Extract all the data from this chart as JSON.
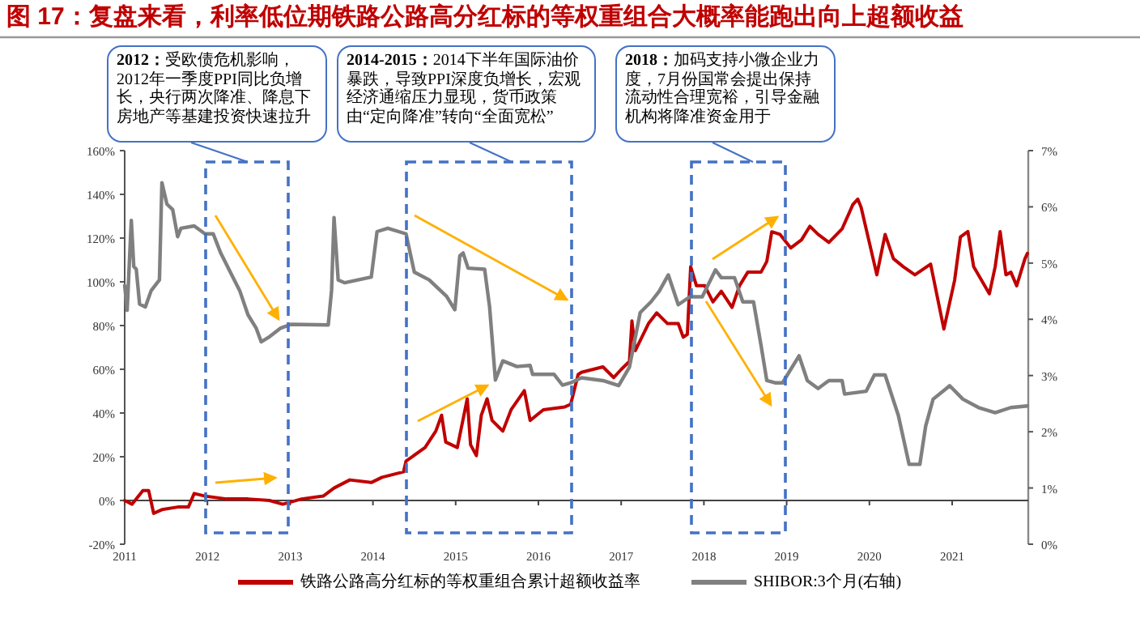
{
  "chart_data": {
    "type": "line",
    "title": "图 17：复盘来看，利率低位期铁路公路高分红标的等权重组合大概率能跑出向上超额收益",
    "annotations": [
      "**2012：**受欧债危机影响，2012年一季度PPI同比负增长，央行两次降准、降息下房地产等基建投资快速拉升",
      "**2014-2015：**2014下半年国际油价暴跌，导致PPI深度负增长，宏观经济通缩压力显现，货币政策由“定向降准”转向“全面宽松”",
      "**2018：**加码支持小微企业力度，7月份国常会提出保持流动性合理宽裕，引导金融机构将降准资金用于"
    ],
    "xlim": [
      2011,
      2021.92
    ],
    "xticks": [
      2011,
      2012,
      2013,
      2014,
      2015,
      2016,
      2017,
      2018,
      2019,
      2020,
      2021
    ],
    "ylim": [
      -20,
      160
    ],
    "yticks": [
      {
        "value": -20,
        "label": "-20%"
      },
      {
        "value": 0,
        "label": "0%"
      },
      {
        "value": 20,
        "label": "20%"
      },
      {
        "value": 40,
        "label": "40%"
      },
      {
        "value": 60,
        "label": "60%"
      },
      {
        "value": 80,
        "label": "80%"
      },
      {
        "value": 100,
        "label": "100%"
      },
      {
        "value": 120,
        "label": "120%"
      },
      {
        "value": 140,
        "label": "140%"
      },
      {
        "value": 160,
        "label": "160%"
      }
    ],
    "y2lim": [
      0,
      7
    ],
    "y2ticks": [
      {
        "value": 0,
        "label": "0%"
      },
      {
        "value": 1,
        "label": "1%"
      },
      {
        "value": 2,
        "label": "2%"
      },
      {
        "value": 3,
        "label": "3%"
      },
      {
        "value": 4,
        "label": "4%"
      },
      {
        "value": 5,
        "label": "5%"
      },
      {
        "value": 6,
        "label": "6%"
      },
      {
        "value": 7,
        "label": "7%"
      }
    ],
    "legend": "bottom",
    "line_style": "solid",
    "series": [
      {
        "name": "铁路公路高分红标的等权重组合累计超额收益率",
        "color": "#c00000",
        "x": [
          2011.0,
          2011.09,
          2011.22,
          2011.29,
          2011.35,
          2011.45,
          2011.64,
          2011.77,
          2011.84,
          2011.97,
          2012.23,
          2012.49,
          2012.75,
          2012.91,
          2013.14,
          2013.4,
          2013.53,
          2013.72,
          2013.98,
          2014.11,
          2014.37,
          2014.4,
          2014.63,
          2014.76,
          2014.83,
          2014.88,
          2015.02,
          2015.14,
          2015.18,
          2015.25,
          2015.31,
          2015.38,
          2015.44,
          2015.57,
          2015.67,
          2015.83,
          2015.9,
          2016.06,
          2016.32,
          2016.39,
          2016.48,
          2016.52,
          2016.78,
          2016.91,
          2017.0,
          2017.1,
          2017.13,
          2017.17,
          2017.33,
          2017.43,
          2017.56,
          2017.69,
          2017.75,
          2017.8,
          2017.84,
          2017.91,
          2018.01,
          2018.11,
          2018.21,
          2018.34,
          2018.43,
          2018.53,
          2018.69,
          2018.76,
          2018.82,
          2018.92,
          2019.05,
          2019.18,
          2019.28,
          2019.38,
          2019.51,
          2019.67,
          2019.8,
          2019.86,
          2019.9,
          2020.03,
          2020.09,
          2020.19,
          2020.29,
          2020.41,
          2020.55,
          2020.74,
          2020.9,
          2021.03,
          2021.1,
          2021.19,
          2021.26,
          2021.45,
          2021.52,
          2021.58,
          2021.65,
          2021.71,
          2021.78,
          2021.88,
          2021.91
        ],
        "values": [
          0,
          -1.7,
          4.5,
          4.5,
          -5.9,
          -4.2,
          -3,
          -3,
          3.2,
          2,
          0.7,
          0.7,
          0,
          -1.7,
          0.7,
          2,
          5.7,
          9.4,
          8.2,
          10.6,
          13.1,
          18,
          24.2,
          31.7,
          39,
          26.7,
          24.2,
          46.5,
          25.5,
          20.5,
          39,
          46.5,
          36.6,
          31.7,
          41.5,
          50.2,
          36.6,
          41.5,
          42.8,
          44,
          57.6,
          58.6,
          61.1,
          56.2,
          59.9,
          63.6,
          82.1,
          68.5,
          80.9,
          85.8,
          80.9,
          80.9,
          74.7,
          76,
          106.9,
          98.2,
          98.2,
          90.8,
          95.7,
          88.3,
          98.2,
          104.4,
          104.4,
          109.3,
          122.9,
          121.7,
          115.5,
          119.2,
          125.4,
          121.7,
          118,
          124.2,
          135.3,
          137.8,
          134.1,
          113,
          103.2,
          121.7,
          110.6,
          106.9,
          103.2,
          108.1,
          78.4,
          100.7,
          120.5,
          123,
          106.9,
          94.5,
          106.9,
          123,
          103.2,
          104.4,
          98.2,
          110.6,
          113
        ]
      },
      {
        "name": "SHIBOR:3个月(右轴)",
        "color": "#808080",
        "axis": "y2",
        "x": [
          2011.0,
          2011.03,
          2011.08,
          2011.11,
          2011.14,
          2011.18,
          2011.25,
          2011.32,
          2011.42,
          2011.45,
          2011.51,
          2011.58,
          2011.64,
          2011.68,
          2011.84,
          2011.97,
          2012.07,
          2012.16,
          2012.29,
          2012.39,
          2012.49,
          2012.59,
          2012.65,
          2012.75,
          2012.88,
          2013.01,
          2013.46,
          2013.5,
          2013.53,
          2013.58,
          2013.66,
          2013.98,
          2014.05,
          2014.18,
          2014.4,
          2014.5,
          2014.68,
          2014.89,
          2014.99,
          2015.05,
          2015.09,
          2015.15,
          2015.35,
          2015.41,
          2015.48,
          2015.57,
          2015.74,
          2015.9,
          2015.93,
          2016.19,
          2016.29,
          2016.39,
          2016.52,
          2016.78,
          2016.97,
          2017.1,
          2017.23,
          2017.36,
          2017.46,
          2017.57,
          2017.69,
          2017.83,
          2017.98,
          2018.14,
          2018.21,
          2018.37,
          2018.47,
          2018.6,
          2018.69,
          2018.76,
          2018.86,
          2018.95,
          2019.15,
          2019.25,
          2019.38,
          2019.51,
          2019.67,
          2019.7,
          2019.96,
          2020.06,
          2020.19,
          2020.35,
          2020.48,
          2020.61,
          2020.68,
          2020.77,
          2020.93,
          2020.97,
          2021.13,
          2021.32,
          2021.52,
          2021.71,
          2021.91
        ],
        "values": [
          4.6,
          4.16,
          5.76,
          4.94,
          4.89,
          4.27,
          4.22,
          4.51,
          4.7,
          6.43,
          6.05,
          5.95,
          5.47,
          5.62,
          5.66,
          5.52,
          5.52,
          5.18,
          4.8,
          4.51,
          4.08,
          3.84,
          3.6,
          3.69,
          3.84,
          3.91,
          3.9,
          4.51,
          5.81,
          4.7,
          4.65,
          4.75,
          5.56,
          5.62,
          5.52,
          4.84,
          4.7,
          4.41,
          4.17,
          5.13,
          5.18,
          4.91,
          4.89,
          4.22,
          2.92,
          3.26,
          3.16,
          3.18,
          3.02,
          3.02,
          2.83,
          2.87,
          2.96,
          2.91,
          2.82,
          3.15,
          4.12,
          4.31,
          4.5,
          4.79,
          4.26,
          4.4,
          4.4,
          4.88,
          4.74,
          4.74,
          4.31,
          4.31,
          3.54,
          2.91,
          2.87,
          2.87,
          3.35,
          2.91,
          2.77,
          2.91,
          2.91,
          2.67,
          2.72,
          3.01,
          3.01,
          2.29,
          1.42,
          1.42,
          2.1,
          2.58,
          2.77,
          2.82,
          2.58,
          2.43,
          2.34,
          2.43,
          2.46
        ]
      }
    ]
  }
}
